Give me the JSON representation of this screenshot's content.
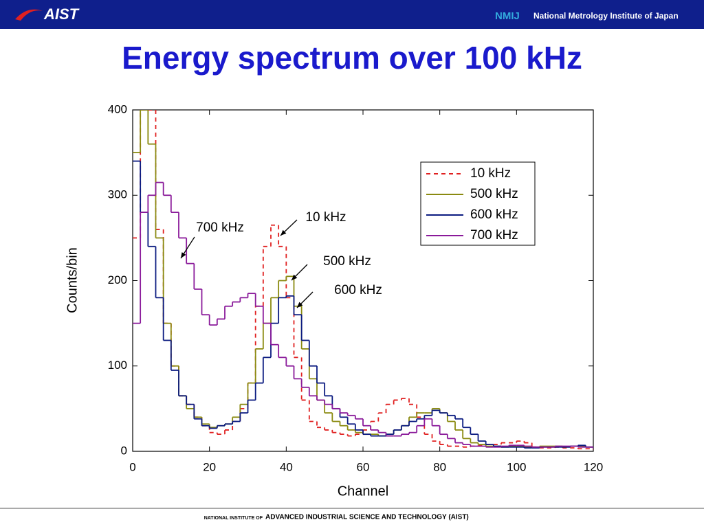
{
  "header": {
    "logo": "AIST",
    "nmij": "NMIJ",
    "org": "National Metrology Institute of Japan"
  },
  "title": "Energy spectrum over 100 kHz",
  "chart_data": {
    "type": "step",
    "x_label": "Channel",
    "y_label": "Counts/bin",
    "x": [
      0,
      2,
      4,
      6,
      8,
      10,
      12,
      14,
      16,
      18,
      20,
      22,
      24,
      26,
      28,
      30,
      32,
      34,
      36,
      38,
      40,
      42,
      44,
      46,
      48,
      50,
      52,
      54,
      56,
      58,
      60,
      62,
      64,
      66,
      68,
      70,
      72,
      74,
      76,
      78,
      80,
      82,
      84,
      86,
      88,
      90,
      92,
      94,
      96,
      98,
      100,
      102,
      104,
      106,
      108,
      110,
      112,
      114,
      116,
      118,
      120
    ],
    "series": [
      {
        "name": "10 kHz",
        "color": "#e02020",
        "style": "dashed",
        "values": [
          250,
          400,
          400,
          260,
          150,
          100,
          65,
          55,
          40,
          30,
          22,
          20,
          25,
          35,
          50,
          80,
          170,
          240,
          265,
          240,
          180,
          110,
          60,
          35,
          28,
          25,
          22,
          20,
          18,
          20,
          25,
          35,
          45,
          55,
          60,
          62,
          55,
          40,
          20,
          12,
          8,
          6,
          6,
          5,
          6,
          7,
          8,
          8,
          10,
          10,
          12,
          10,
          5,
          4,
          4,
          5,
          4,
          4,
          3,
          3,
          2
        ]
      },
      {
        "name": "500 kHz",
        "color": "#8a8a10",
        "style": "solid",
        "values": [
          350,
          400,
          360,
          250,
          150,
          100,
          65,
          50,
          40,
          32,
          28,
          30,
          32,
          40,
          55,
          80,
          120,
          150,
          180,
          200,
          205,
          170,
          120,
          85,
          60,
          45,
          35,
          30,
          25,
          22,
          20,
          20,
          18,
          20,
          25,
          30,
          40,
          45,
          45,
          50,
          45,
          35,
          25,
          15,
          10,
          8,
          6,
          6,
          5,
          6,
          6,
          5,
          5,
          6,
          6,
          6,
          5,
          6,
          6,
          5,
          3
        ]
      },
      {
        "name": "600 kHz",
        "color": "#0a1a80",
        "style": "solid",
        "values": [
          340,
          280,
          240,
          180,
          130,
          95,
          65,
          55,
          38,
          30,
          27,
          30,
          32,
          35,
          45,
          60,
          80,
          110,
          150,
          180,
          182,
          160,
          130,
          100,
          80,
          65,
          50,
          40,
          32,
          25,
          20,
          18,
          18,
          20,
          25,
          30,
          35,
          38,
          42,
          48,
          45,
          42,
          38,
          28,
          20,
          12,
          8,
          6,
          5,
          5,
          5,
          4,
          4,
          5,
          5,
          5,
          5,
          6,
          7,
          5,
          3
        ]
      },
      {
        "name": "700 kHz",
        "color": "#8a1a9a",
        "style": "solid",
        "values": [
          150,
          280,
          300,
          315,
          300,
          280,
          250,
          220,
          190,
          160,
          148,
          155,
          170,
          175,
          180,
          185,
          170,
          150,
          125,
          110,
          100,
          85,
          75,
          65,
          60,
          55,
          50,
          45,
          42,
          38,
          30,
          25,
          22,
          18,
          18,
          20,
          22,
          30,
          38,
          30,
          20,
          15,
          10,
          8,
          6,
          6,
          5,
          5,
          6,
          7,
          7,
          6,
          5,
          5,
          5,
          6,
          6,
          6,
          5,
          5,
          3
        ]
      }
    ],
    "xlim": [
      0,
      120
    ],
    "xticks": [
      0,
      20,
      40,
      60,
      80,
      100,
      120
    ],
    "ylim": [
      0,
      400
    ],
    "yticks": [
      0,
      100,
      200,
      300,
      400
    ],
    "legend": "upper right",
    "annotations": [
      "700 kHz",
      "10 kHz",
      "500 kHz",
      "600 kHz"
    ]
  },
  "footer": {
    "prefix": "NATIONAL INSTITUTE OF",
    "name": "ADVANCED INDUSTRIAL SCIENCE AND TECHNOLOGY (AIST)"
  }
}
